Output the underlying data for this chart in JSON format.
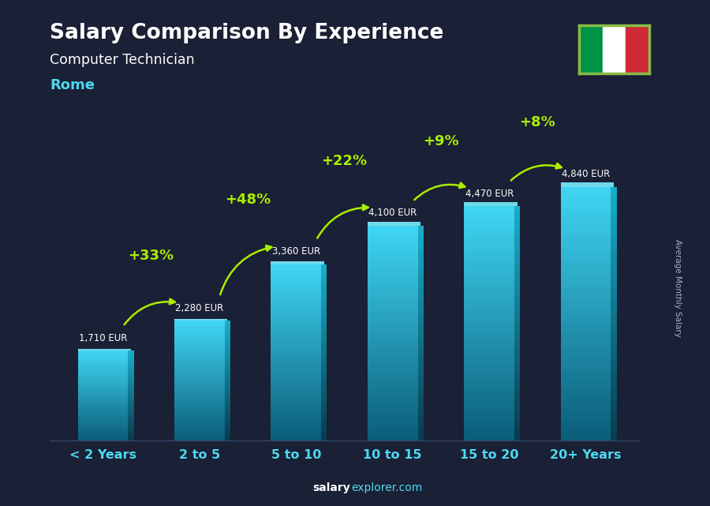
{
  "title": "Salary Comparison By Experience",
  "subtitle": "Computer Technician",
  "city": "Rome",
  "categories": [
    "< 2 Years",
    "2 to 5",
    "5 to 10",
    "10 to 15",
    "15 to 20",
    "20+ Years"
  ],
  "values": [
    1710,
    2280,
    3360,
    4100,
    4470,
    4840
  ],
  "labels": [
    "1,710 EUR",
    "2,280 EUR",
    "3,360 EUR",
    "4,100 EUR",
    "4,470 EUR",
    "4,840 EUR"
  ],
  "pct_changes": [
    "+33%",
    "+48%",
    "+22%",
    "+9%",
    "+8%"
  ],
  "bg_color": "#1a2035",
  "text_color_white": "#ffffff",
  "text_color_cyan": "#4dd9f0",
  "text_color_green": "#aaee00",
  "ylabel": "Average Monthly Salary",
  "footer_bold": "salary",
  "footer_light": "explorer.com",
  "ylim_max": 5800,
  "bar_bottom_color": "#0b5e7a",
  "bar_top_color": "#40d8f5",
  "bar_side_bottom": "#073d50",
  "bar_side_top": "#1aafcc",
  "bar_highlight_color": "#7eeeff"
}
